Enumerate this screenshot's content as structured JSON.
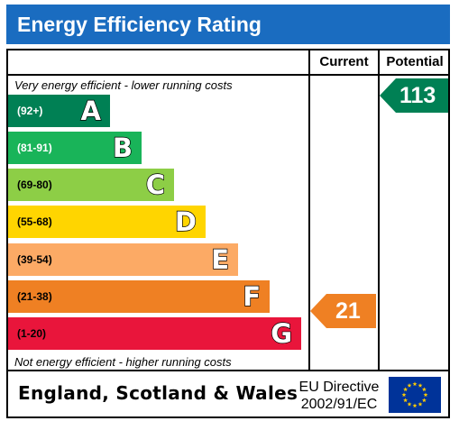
{
  "title": "Energy Efficiency Rating",
  "headers": {
    "current": "Current",
    "potential": "Potential"
  },
  "top_note": "Very energy efficient - lower running costs",
  "bottom_note": "Not energy efficient - higher running costs",
  "bands": [
    {
      "range": "(92+)",
      "letter": "A",
      "color": "#008054",
      "text_color": "#ffffff"
    },
    {
      "range": "(81-91)",
      "letter": "B",
      "color": "#19b459",
      "text_color": "#ffffff"
    },
    {
      "range": "(69-80)",
      "letter": "C",
      "color": "#8dce46",
      "text_color": "#000000"
    },
    {
      "range": "(55-68)",
      "letter": "D",
      "color": "#ffd500",
      "text_color": "#000000"
    },
    {
      "range": "(39-54)",
      "letter": "E",
      "color": "#fcaa65",
      "text_color": "#000000"
    },
    {
      "range": "(21-38)",
      "letter": "F",
      "color": "#ef8023",
      "text_color": "#000000"
    },
    {
      "range": "(1-20)",
      "letter": "G",
      "color": "#e9153b",
      "text_color": "#000000"
    }
  ],
  "current": {
    "value": "21",
    "color": "#ef8023"
  },
  "potential": {
    "value": "113",
    "color": "#008054"
  },
  "footer": {
    "country": "England, Scotland & Wales",
    "directive_line1": "EU Directive",
    "directive_line2": "2002/91/EC"
  },
  "eu_flag": {
    "icon": "eu-flag-icon",
    "background": "#003399",
    "star_color": "#ffcc00"
  }
}
